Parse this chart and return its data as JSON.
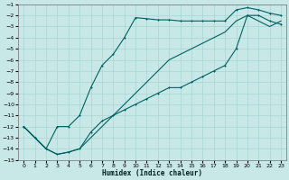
{
  "background_color": "#c8e8e8",
  "grid_color": "#a8d4d4",
  "line_color": "#006060",
  "xlabel": "Humidex (Indice chaleur)",
  "xlim": [
    -0.5,
    23.5
  ],
  "ylim": [
    -15,
    -1
  ],
  "yticks": [
    -15,
    -14,
    -13,
    -12,
    -11,
    -10,
    -9,
    -8,
    -7,
    -6,
    -5,
    -4,
    -3,
    -2,
    -1
  ],
  "xticks": [
    0,
    1,
    2,
    3,
    4,
    5,
    6,
    7,
    8,
    9,
    10,
    11,
    12,
    13,
    14,
    15,
    16,
    17,
    18,
    19,
    20,
    21,
    22,
    23
  ],
  "line1_x": [
    0,
    1,
    2,
    3,
    4,
    5,
    6,
    7,
    8,
    9,
    10,
    11,
    12,
    13,
    14,
    15,
    16,
    17,
    18,
    19,
    20,
    21,
    22,
    23
  ],
  "line1_y": [
    -12,
    -13,
    -14,
    -14.5,
    -14.3,
    -14.0,
    -12.5,
    -11.5,
    -11.0,
    -10.5,
    -10.0,
    -9.5,
    -9.0,
    -8.5,
    -8.5,
    -8.0,
    -7.5,
    -7.0,
    -6.5,
    -5.0,
    -2.0,
    -2.0,
    -2.5,
    -2.8
  ],
  "line2_x": [
    0,
    1,
    2,
    3,
    4,
    5,
    6,
    7,
    8,
    9,
    10,
    11,
    12,
    13,
    14,
    15,
    16,
    17,
    18,
    19,
    20,
    21,
    22,
    23
  ],
  "line2_y": [
    -12,
    -13,
    -14,
    -12.0,
    -12.0,
    -11.0,
    -8.5,
    -6.5,
    -5.5,
    -4.0,
    -2.2,
    -2.3,
    -2.4,
    -2.4,
    -2.5,
    -2.5,
    -2.5,
    -2.5,
    -2.5,
    -1.5,
    -1.3,
    -1.5,
    -1.8,
    -2.0
  ],
  "line3_x": [
    0,
    1,
    2,
    3,
    4,
    5,
    6,
    7,
    8,
    9,
    10,
    11,
    12,
    13,
    14,
    15,
    16,
    17,
    18,
    19,
    20,
    21,
    22,
    23
  ],
  "line3_y": [
    -12,
    -13,
    -14,
    -14.5,
    -14.3,
    -14.0,
    -13.0,
    -12.0,
    -11.0,
    -10.0,
    -9.0,
    -8.0,
    -7.0,
    -6.0,
    -5.5,
    -5.0,
    -4.5,
    -4.0,
    -3.5,
    -2.5,
    -2.0,
    -2.5,
    -3.0,
    -2.5
  ]
}
